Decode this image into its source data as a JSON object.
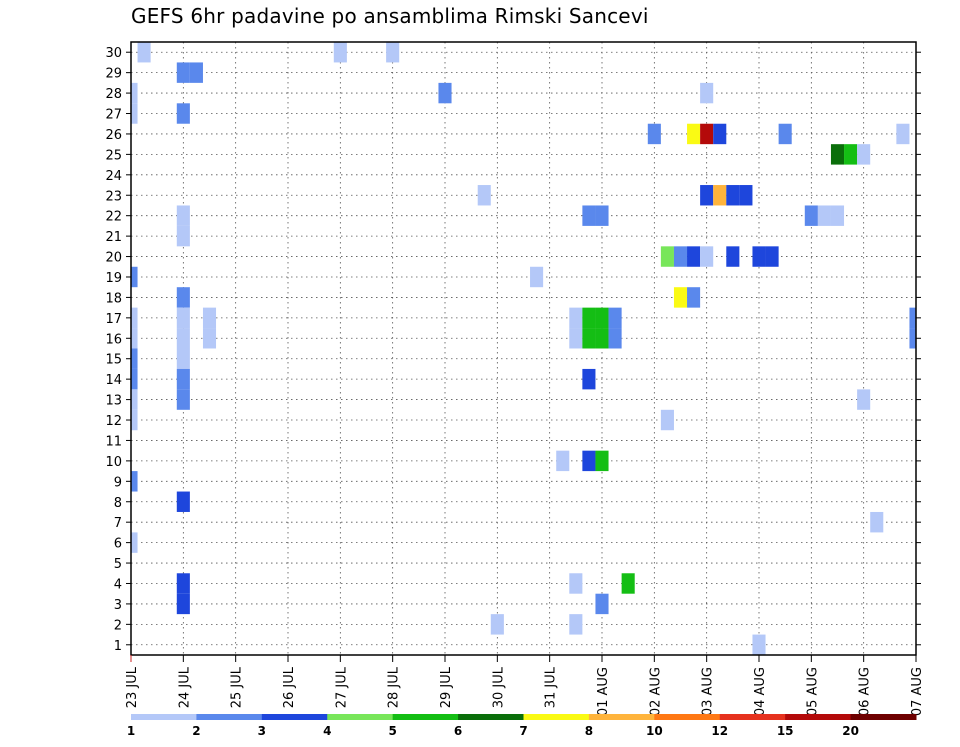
{
  "chart_data": {
    "type": "heatmap",
    "title": "GEFS 6hr padavine po ansamblima Rimski Sancevi",
    "x_tick_labels": [
      "23 JUL",
      "24 JUL",
      "25 JUL",
      "26 JUL",
      "27 JUL",
      "28 JUL",
      "29 JUL",
      "30 JUL",
      "31 JUL",
      "01 AUG",
      "02 AUG",
      "03 AUG",
      "04 AUG",
      "05 AUG",
      "06 AUG",
      "07 AUG"
    ],
    "y_tick_labels": [
      "1",
      "2",
      "3",
      "4",
      "5",
      "6",
      "7",
      "8",
      "9",
      "10",
      "11",
      "12",
      "13",
      "14",
      "15",
      "16",
      "17",
      "18",
      "19",
      "20",
      "21",
      "22",
      "23",
      "24",
      "25",
      "26",
      "27",
      "28",
      "29",
      "30"
    ],
    "xlim": [
      0,
      60
    ],
    "ylim": [
      0.5,
      30.5
    ],
    "grid": true,
    "colorbar": {
      "placement": "bottom",
      "labels": [
        "1",
        "2",
        "3",
        "4",
        "5",
        "6",
        "7",
        "8",
        "10",
        "12",
        "15",
        "20"
      ],
      "colors": [
        "#b4c8f8",
        "#5a88ec",
        "#1e46dc",
        "#78e65a",
        "#14be14",
        "#0a6e0a",
        "#fafa14",
        "#ffb43c",
        "#ff7814",
        "#e6321e",
        "#b40a0a",
        "#6e0000"
      ]
    },
    "cells": [
      {
        "m": 30,
        "t": 1,
        "c": 0
      },
      {
        "m": 30,
        "t": 16,
        "c": 0
      },
      {
        "m": 30,
        "t": 20,
        "c": 0
      },
      {
        "m": 29,
        "t": 4,
        "c": 1
      },
      {
        "m": 29,
        "t": 5,
        "c": 1
      },
      {
        "m": 28,
        "t": 0,
        "c": 0
      },
      {
        "m": 28,
        "t": 24,
        "c": 1
      },
      {
        "m": 28,
        "t": 44,
        "c": 0
      },
      {
        "m": 27,
        "t": 0,
        "c": 0
      },
      {
        "m": 27,
        "t": 4,
        "c": 1
      },
      {
        "m": 26,
        "t": 40,
        "c": 1
      },
      {
        "m": 26,
        "t": 43,
        "c": 6
      },
      {
        "m": 26,
        "t": 44,
        "c": 10
      },
      {
        "m": 26,
        "t": 45,
        "c": 2
      },
      {
        "m": 26,
        "t": 50,
        "c": 1
      },
      {
        "m": 26,
        "t": 59,
        "c": 0
      },
      {
        "m": 25,
        "t": 54,
        "c": 5
      },
      {
        "m": 25,
        "t": 55,
        "c": 4
      },
      {
        "m": 25,
        "t": 56,
        "c": 0
      },
      {
        "m": 23,
        "t": 27,
        "c": 0
      },
      {
        "m": 23,
        "t": 44,
        "c": 2
      },
      {
        "m": 23,
        "t": 45,
        "c": 7
      },
      {
        "m": 23,
        "t": 46,
        "c": 2
      },
      {
        "m": 23,
        "t": 47,
        "c": 2
      },
      {
        "m": 22,
        "t": 4,
        "c": 0
      },
      {
        "m": 22,
        "t": 35,
        "c": 1
      },
      {
        "m": 22,
        "t": 36,
        "c": 1
      },
      {
        "m": 22,
        "t": 52,
        "c": 1
      },
      {
        "m": 22,
        "t": 53,
        "c": 0
      },
      {
        "m": 22,
        "t": 54,
        "c": 0
      },
      {
        "m": 21,
        "t": 4,
        "c": 0
      },
      {
        "m": 20,
        "t": 41,
        "c": 3
      },
      {
        "m": 20,
        "t": 42,
        "c": 1
      },
      {
        "m": 20,
        "t": 43,
        "c": 2
      },
      {
        "m": 20,
        "t": 44,
        "c": 0
      },
      {
        "m": 20,
        "t": 46,
        "c": 2
      },
      {
        "m": 20,
        "t": 48,
        "c": 2
      },
      {
        "m": 20,
        "t": 49,
        "c": 2
      },
      {
        "m": 19,
        "t": 0,
        "c": 1
      },
      {
        "m": 19,
        "t": 31,
        "c": 0
      },
      {
        "m": 18,
        "t": 4,
        "c": 1
      },
      {
        "m": 18,
        "t": 42,
        "c": 6
      },
      {
        "m": 18,
        "t": 43,
        "c": 1
      },
      {
        "m": 17,
        "t": 0,
        "c": 0
      },
      {
        "m": 17,
        "t": 4,
        "c": 0
      },
      {
        "m": 17,
        "t": 6,
        "c": 0
      },
      {
        "m": 17,
        "t": 34,
        "c": 0
      },
      {
        "m": 17,
        "t": 35,
        "c": 4
      },
      {
        "m": 17,
        "t": 36,
        "c": 4
      },
      {
        "m": 17,
        "t": 37,
        "c": 1
      },
      {
        "m": 17,
        "t": 60,
        "c": 1
      },
      {
        "m": 16,
        "t": 0,
        "c": 0
      },
      {
        "m": 16,
        "t": 4,
        "c": 0
      },
      {
        "m": 16,
        "t": 6,
        "c": 0
      },
      {
        "m": 16,
        "t": 34,
        "c": 0
      },
      {
        "m": 16,
        "t": 35,
        "c": 4
      },
      {
        "m": 16,
        "t": 36,
        "c": 4
      },
      {
        "m": 16,
        "t": 37,
        "c": 1
      },
      {
        "m": 16,
        "t": 60,
        "c": 1
      },
      {
        "m": 15,
        "t": 0,
        "c": 1
      },
      {
        "m": 15,
        "t": 4,
        "c": 0
      },
      {
        "m": 14,
        "t": 0,
        "c": 1
      },
      {
        "m": 14,
        "t": 4,
        "c": 1
      },
      {
        "m": 14,
        "t": 35,
        "c": 2
      },
      {
        "m": 13,
        "t": 0,
        "c": 0
      },
      {
        "m": 13,
        "t": 4,
        "c": 1
      },
      {
        "m": 13,
        "t": 56,
        "c": 0
      },
      {
        "m": 12,
        "t": 0,
        "c": 0
      },
      {
        "m": 12,
        "t": 41,
        "c": 0
      },
      {
        "m": 10,
        "t": 33,
        "c": 0
      },
      {
        "m": 10,
        "t": 35,
        "c": 2
      },
      {
        "m": 10,
        "t": 36,
        "c": 4
      },
      {
        "m": 9,
        "t": 0,
        "c": 1
      },
      {
        "m": 8,
        "t": 4,
        "c": 2
      },
      {
        "m": 7,
        "t": 57,
        "c": 0
      },
      {
        "m": 6,
        "t": 0,
        "c": 0
      },
      {
        "m": 4,
        "t": 4,
        "c": 2
      },
      {
        "m": 4,
        "t": 34,
        "c": 0
      },
      {
        "m": 4,
        "t": 38,
        "c": 4
      },
      {
        "m": 3,
        "t": 4,
        "c": 2
      },
      {
        "m": 3,
        "t": 36,
        "c": 1
      },
      {
        "m": 2,
        "t": 28,
        "c": 0
      },
      {
        "m": 2,
        "t": 34,
        "c": 0
      },
      {
        "m": 1,
        "t": 48,
        "c": 0
      }
    ]
  }
}
